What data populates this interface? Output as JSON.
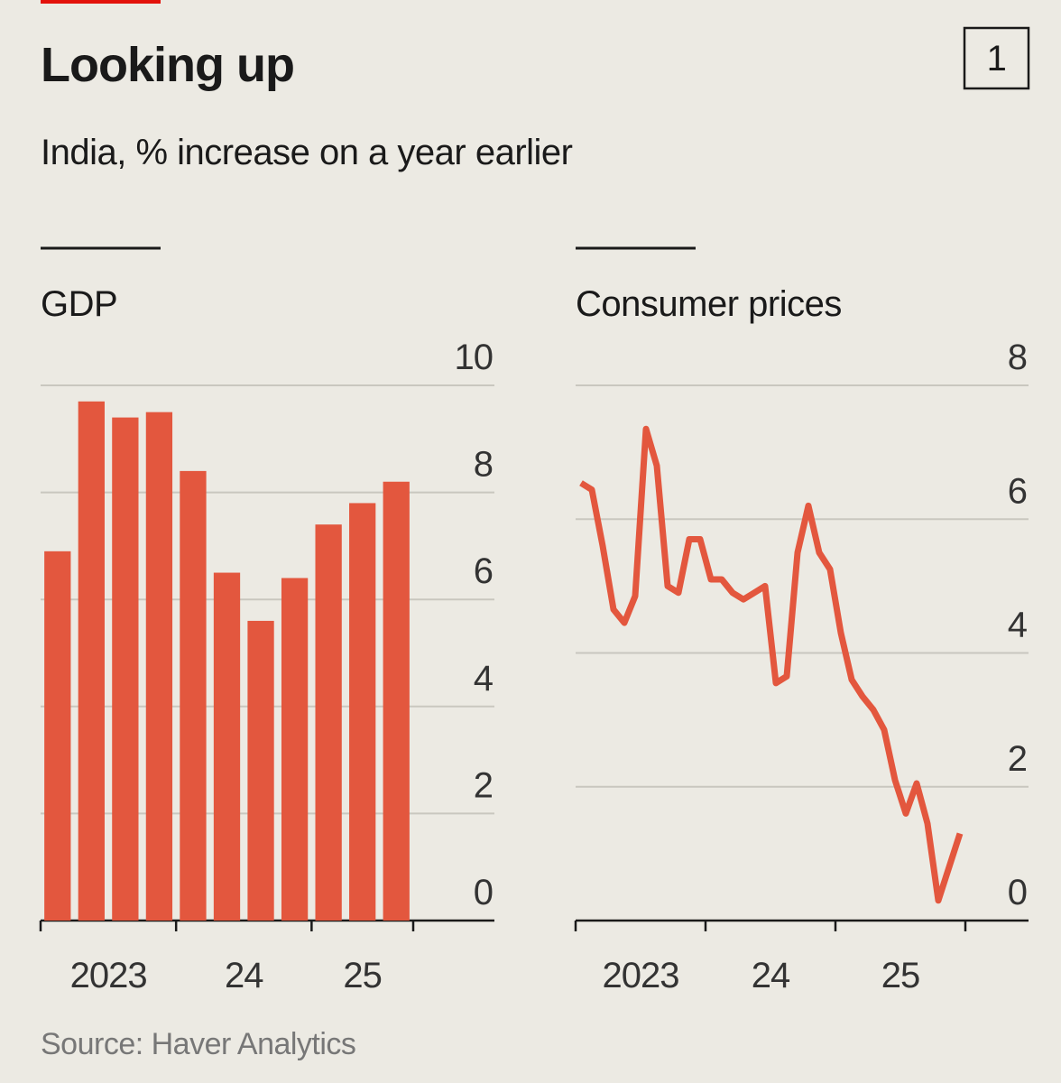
{
  "title": "Looking up",
  "subtitle": "India, % increase on a year earlier",
  "badge": "1",
  "source": "Source: Haver Analytics",
  "chart_data": [
    {
      "type": "bar",
      "title": "GDP",
      "categories": [
        null,
        null,
        null,
        null,
        null,
        null,
        null,
        null,
        null,
        null,
        null
      ],
      "x_groups": [
        {
          "label": "2023",
          "count": 4
        },
        {
          "label": "24",
          "count": 4
        },
        {
          "label": "25",
          "count": 3
        }
      ],
      "values": [
        6.9,
        9.7,
        9.4,
        9.5,
        8.4,
        6.5,
        5.6,
        6.4,
        7.4,
        7.8,
        8.2
      ],
      "color": "#e3573e",
      "ylim": [
        0,
        10
      ],
      "yticks": [
        0,
        2,
        4,
        6,
        8,
        10
      ],
      "grid": true
    },
    {
      "type": "line",
      "title": "Consumer prices",
      "categories": [
        null,
        null,
        null,
        null,
        null,
        null,
        null,
        null,
        null,
        null,
        null,
        null,
        null,
        null,
        null,
        null,
        null,
        null,
        null,
        null,
        null,
        null,
        null,
        null,
        null,
        null,
        null,
        null,
        null,
        null,
        null,
        null,
        null,
        null,
        null,
        null
      ],
      "x_groups": [
        {
          "label": "2023",
          "count": 12
        },
        {
          "label": "24",
          "count": 12
        },
        {
          "label": "25",
          "count": 12
        }
      ],
      "values": [
        6.54,
        6.44,
        5.6,
        4.65,
        4.45,
        4.85,
        7.35,
        6.8,
        5.0,
        4.9,
        5.7,
        5.7,
        5.1,
        5.1,
        4.9,
        4.8,
        4.9,
        5.0,
        3.55,
        3.65,
        5.5,
        6.2,
        5.5,
        5.25,
        4.3,
        3.6,
        3.35,
        3.15,
        2.85,
        2.1,
        1.6,
        2.05,
        1.45,
        0.3,
        0.8,
        1.3
      ],
      "color": "#e3573e",
      "ylim": [
        0,
        8
      ],
      "yticks": [
        0,
        2,
        4,
        6,
        8
      ],
      "grid": true
    }
  ]
}
